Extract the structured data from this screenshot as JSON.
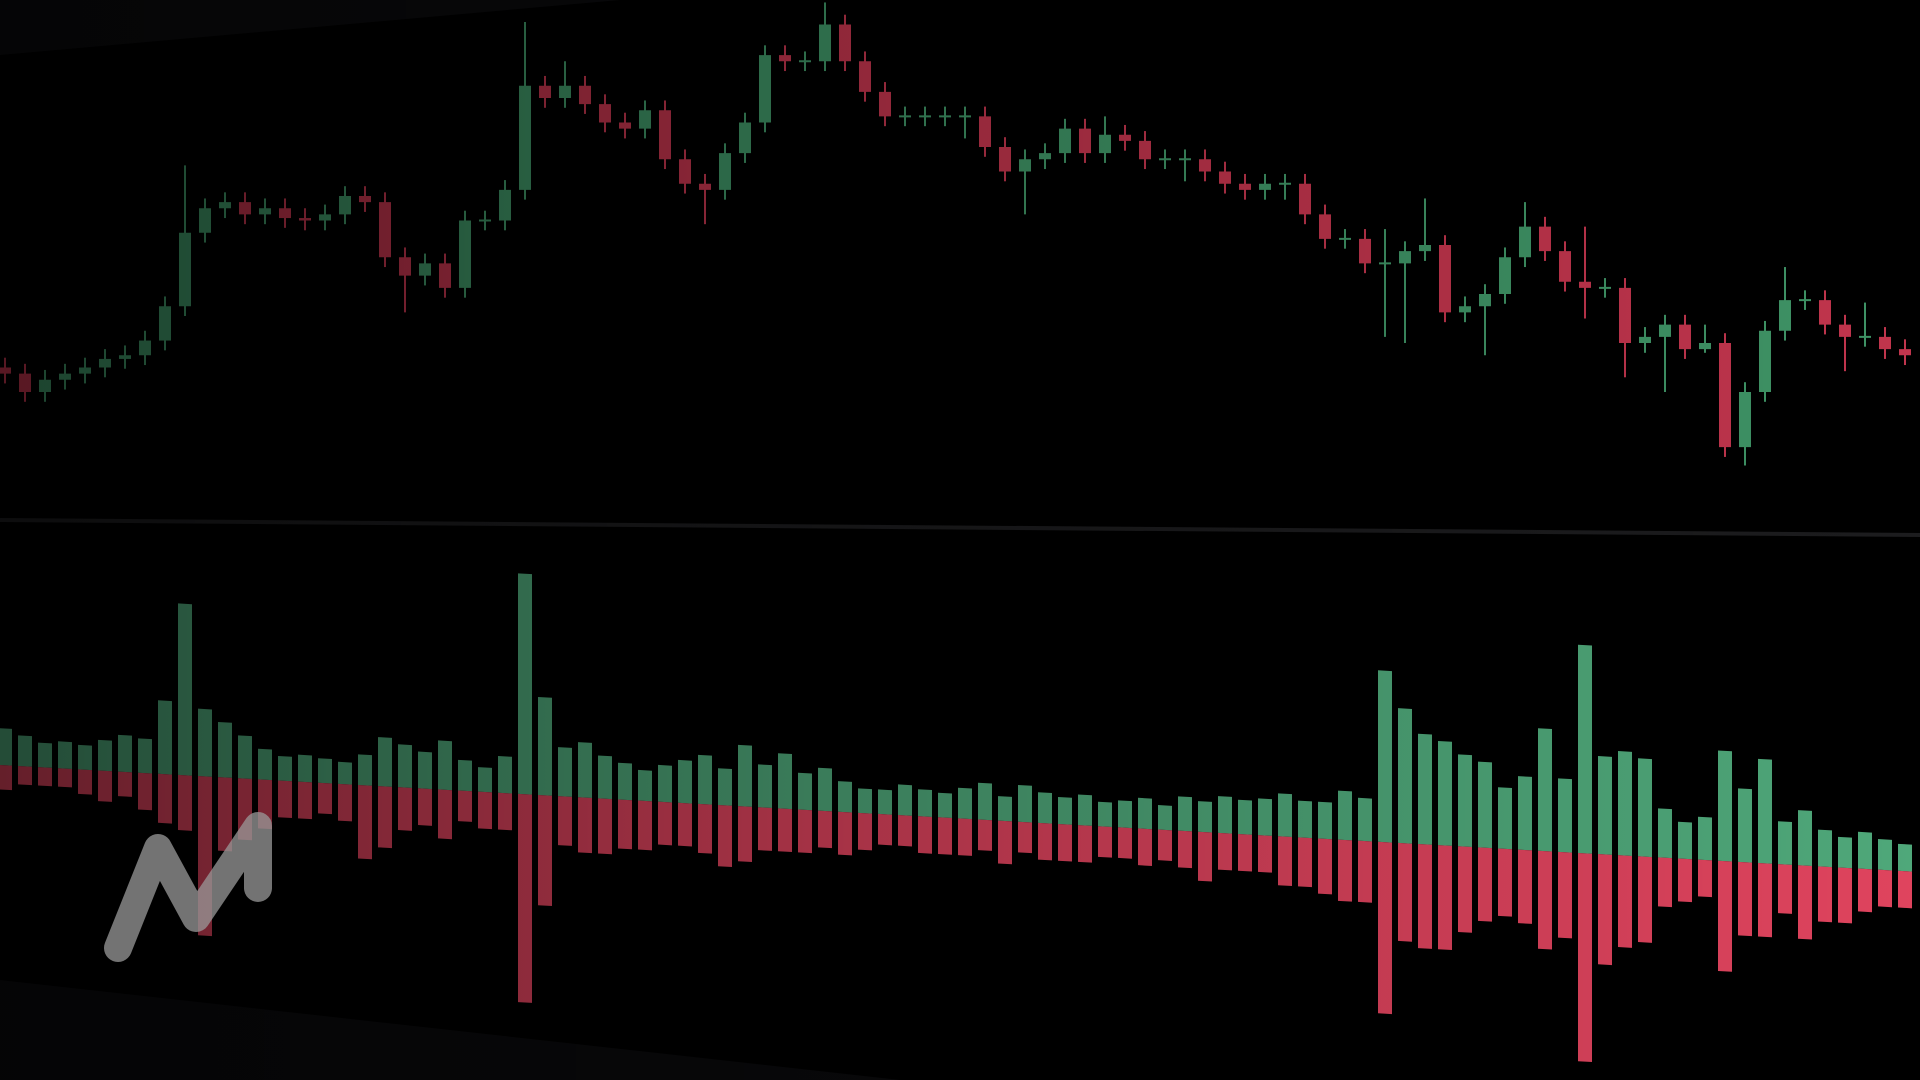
{
  "chart_data": [
    {
      "type": "candlestick",
      "up_color": "#3f9466",
      "down_color": "#c2354d",
      "ylim": [
        600,
        1000
      ],
      "open": [
        700,
        695,
        680,
        690,
        695,
        700,
        707,
        710,
        722,
        750,
        810,
        830,
        835,
        825,
        830,
        822,
        820,
        825,
        840,
        835,
        790,
        775,
        785,
        765,
        820,
        820,
        845,
        930,
        920,
        930,
        915,
        900,
        895,
        910,
        870,
        850,
        845,
        875,
        900,
        955,
        950,
        950,
        980,
        950,
        925,
        905,
        905,
        905,
        905,
        905,
        880,
        860,
        870,
        875,
        895,
        875,
        890,
        885,
        870,
        870,
        870,
        860,
        850,
        845,
        850,
        850,
        825,
        805,
        805,
        785,
        785,
        795,
        800,
        745,
        750,
        760,
        790,
        815,
        795,
        770,
        765,
        765,
        720,
        725,
        735,
        715,
        720,
        635,
        680,
        730,
        755,
        755,
        735,
        725,
        725,
        715
      ],
      "high": [
        708,
        703,
        698,
        703,
        708,
        715,
        718,
        730,
        758,
        865,
        838,
        843,
        843,
        838,
        838,
        830,
        833,
        848,
        848,
        843,
        798,
        793,
        793,
        828,
        828,
        853,
        982,
        938,
        950,
        938,
        923,
        908,
        918,
        918,
        878,
        858,
        883,
        908,
        963,
        963,
        958,
        998,
        988,
        958,
        933,
        913,
        913,
        913,
        913,
        913,
        888,
        878,
        883,
        903,
        903,
        905,
        898,
        893,
        878,
        878,
        878,
        868,
        858,
        858,
        858,
        858,
        833,
        813,
        813,
        813,
        803,
        838,
        808,
        758,
        768,
        798,
        835,
        823,
        803,
        815,
        773,
        773,
        733,
        743,
        743,
        735,
        728,
        688,
        738,
        782,
        763,
        763,
        743,
        753,
        733,
        723
      ],
      "low": [
        687,
        672,
        672,
        682,
        687,
        692,
        699,
        702,
        714,
        742,
        802,
        822,
        817,
        817,
        814,
        812,
        812,
        817,
        827,
        782,
        745,
        767,
        757,
        757,
        812,
        812,
        837,
        912,
        912,
        907,
        892,
        887,
        887,
        862,
        842,
        817,
        837,
        867,
        892,
        942,
        942,
        942,
        942,
        917,
        897,
        897,
        897,
        897,
        887,
        872,
        852,
        825,
        862,
        867,
        867,
        867,
        877,
        862,
        862,
        852,
        852,
        842,
        837,
        837,
        837,
        817,
        797,
        797,
        777,
        725,
        720,
        787,
        737,
        737,
        710,
        752,
        782,
        787,
        762,
        740,
        757,
        692,
        712,
        680,
        707,
        712,
        627,
        620,
        672,
        722,
        747,
        727,
        697,
        717,
        707,
        702
      ],
      "close": [
        695,
        680,
        690,
        695,
        700,
        707,
        710,
        722,
        750,
        810,
        830,
        835,
        825,
        830,
        822,
        820,
        825,
        840,
        835,
        790,
        775,
        785,
        765,
        820,
        820,
        845,
        930,
        920,
        930,
        915,
        900,
        895,
        910,
        870,
        850,
        845,
        875,
        900,
        955,
        950,
        950,
        980,
        950,
        925,
        905,
        905,
        905,
        905,
        905,
        880,
        860,
        870,
        875,
        895,
        875,
        890,
        885,
        870,
        870,
        870,
        860,
        850,
        845,
        850,
        850,
        825,
        805,
        805,
        785,
        785,
        795,
        800,
        745,
        750,
        760,
        790,
        815,
        795,
        770,
        765,
        765,
        720,
        725,
        735,
        715,
        720,
        635,
        680,
        730,
        755,
        755,
        735,
        725,
        725,
        715,
        710
      ]
    },
    {
      "type": "bar",
      "ylim": [
        0,
        200
      ],
      "series": [
        {
          "color": "#4fa87a",
          "values": [
            30,
            25,
            20,
            22,
            20,
            25,
            30,
            28,
            60,
            140,
            55,
            45,
            35,
            25,
            20,
            22,
            20,
            18,
            25,
            40,
            35,
            30,
            40,
            25,
            20,
            30,
            180,
            80,
            40,
            45,
            35,
            30,
            25,
            30,
            35,
            40,
            30,
            50,
            35,
            45,
            30,
            35,
            25,
            20,
            20,
            25,
            22,
            20,
            25,
            30,
            20,
            30,
            25,
            22,
            25,
            20,
            22,
            25,
            20,
            28,
            25,
            30,
            28,
            30,
            35,
            30,
            30,
            40,
            35,
            140,
            110,
            90,
            85,
            75,
            70,
            50,
            60,
            100,
            60,
            170,
            80,
            85,
            80,
            40,
            30,
            35,
            90,
            60,
            85,
            35,
            45,
            30,
            25,
            30,
            25,
            22
          ]
        },
        {
          "color": "#e0445e",
          "values": [
            20,
            15,
            15,
            15,
            20,
            25,
            20,
            30,
            40,
            45,
            130,
            60,
            50,
            40,
            30,
            30,
            25,
            30,
            60,
            50,
            35,
            30,
            40,
            25,
            30,
            30,
            170,
            90,
            40,
            45,
            45,
            40,
            40,
            35,
            35,
            40,
            50,
            45,
            35,
            35,
            35,
            30,
            35,
            30,
            25,
            25,
            30,
            30,
            30,
            25,
            35,
            25,
            30,
            30,
            30,
            25,
            25,
            30,
            25,
            30,
            40,
            30,
            30,
            30,
            40,
            40,
            45,
            50,
            50,
            140,
            80,
            85,
            85,
            70,
            60,
            55,
            60,
            80,
            70,
            170,
            90,
            75,
            70,
            40,
            35,
            30,
            90,
            60,
            60,
            40,
            60,
            45,
            45,
            35,
            30,
            30
          ]
        }
      ]
    }
  ]
}
